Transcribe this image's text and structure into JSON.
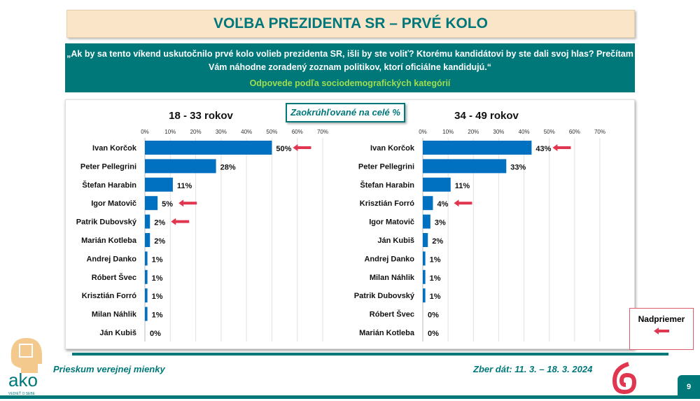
{
  "title": "VOĽBA PREZIDENTA SR – PRVÉ KOLO",
  "question": "„Ak by sa tento víkend uskutočnilo prvé kolo volieb prezidenta SR, išli by ste voliť? Ktorému kandidátovi by ste dali svoj hlas? Prečítam Vám náhodne zoradený zoznam politikov, ktorí oficiálne kandidujú.“",
  "subtitle": "Odpovede podľa sociodemografických kategórií",
  "rounding_note": "Zaokrúhľované na celé %",
  "legend_label": "Nadpriemer",
  "footer": {
    "survey": "Prieskum verejnej mienky",
    "date": "Zber dát: 11. 3. – 18. 3. 2024",
    "page": "9",
    "logo_text": "ako",
    "logo_tagline": "VEDIEŤ O SEBE"
  },
  "colors": {
    "bar": "#0070c0",
    "arrow": "#e0364f",
    "accent": "#00787a"
  },
  "chart_data": [
    {
      "type": "bar",
      "orientation": "horizontal",
      "title": "18 - 33 rokov",
      "xlim": [
        0,
        70
      ],
      "ticks": [
        "0%",
        "10%",
        "20%",
        "30%",
        "40%",
        "50%",
        "60%",
        "70%"
      ],
      "grid": true,
      "categories": [
        "Ivan Korčok",
        "Peter Pellegrini",
        "Štefan Harabin",
        "Igor Matovič",
        "Patrik Dubovský",
        "Marián Kotleba",
        "Andrej Danko",
        "Róbert Švec",
        "Krisztián Forró",
        "Milan Náhlik",
        "Ján Kubiš"
      ],
      "values": [
        50,
        28,
        11,
        5,
        2,
        2,
        1,
        1,
        1,
        1,
        0
      ],
      "labels": [
        "50%",
        "28%",
        "11%",
        "5%",
        "2%",
        "2%",
        "1%",
        "1%",
        "1%",
        "1%",
        "0%"
      ],
      "above_average": [
        true,
        false,
        false,
        true,
        true,
        false,
        false,
        false,
        false,
        false,
        false
      ]
    },
    {
      "type": "bar",
      "orientation": "horizontal",
      "title": "34 - 49 rokov",
      "xlim": [
        0,
        70
      ],
      "ticks": [
        "0%",
        "10%",
        "20%",
        "30%",
        "40%",
        "50%",
        "60%",
        "70%"
      ],
      "grid": true,
      "categories": [
        "Ivan Korčok",
        "Peter Pellegrini",
        "Štefan Harabin",
        "Krisztián Forró",
        "Igor Matovič",
        "Ján Kubiš",
        "Andrej Danko",
        "Milan Náhlik",
        "Patrik Dubovský",
        "Róbert Švec",
        "Marián Kotleba"
      ],
      "values": [
        43,
        33,
        11,
        4,
        3,
        2,
        1,
        1,
        1,
        0,
        0
      ],
      "labels": [
        "43%",
        "33%",
        "11%",
        "4%",
        "3%",
        "2%",
        "1%",
        "1%",
        "1%",
        "0%",
        "0%"
      ],
      "above_average": [
        true,
        false,
        false,
        true,
        false,
        false,
        false,
        false,
        false,
        false,
        false
      ]
    }
  ]
}
